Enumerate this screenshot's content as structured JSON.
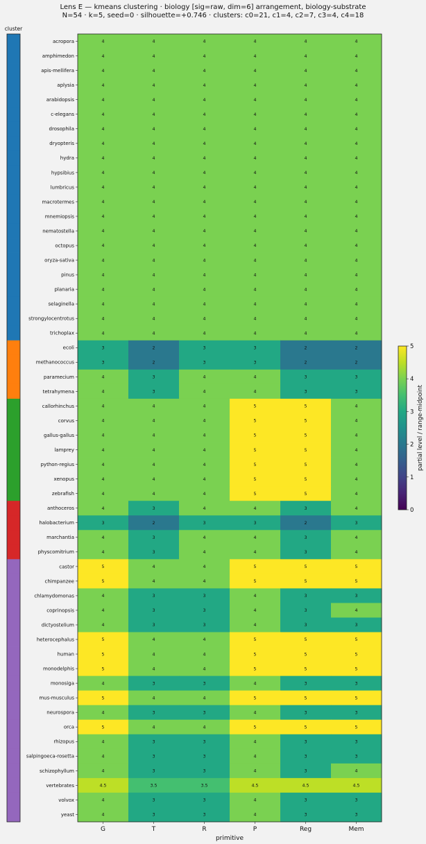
{
  "chart_data": {
    "type": "heatmap",
    "title": "Lens E — kmeans clustering · biology [sig=raw, dim=6] arrangement, biology-substrate",
    "subtitle": "N=54 · k=5, seed=0 · silhouette=+0.746 · clusters: c0=21, c1=4, c2=7, c3=4, c4=18",
    "xlabel": "primitive",
    "ylabel": "",
    "cluster_strip_label": "cluster",
    "colorbar_label": "partial level / range-midpoint",
    "colorbar_range": [
      0,
      5
    ],
    "colorbar_ticks": [
      "0",
      "1",
      "2",
      "3",
      "4",
      "5"
    ],
    "colormap": "viridis",
    "columns": [
      "G",
      "T",
      "R",
      "P",
      "Reg",
      "Mem"
    ],
    "cluster_colors": {
      "c0": "#1f77b4",
      "c1": "#ff7f0e",
      "c2": "#2ca02c",
      "c3": "#d62728",
      "c4": "#9467bd"
    },
    "rows": [
      {
        "name": "acropora",
        "cluster": "c0",
        "values": [
          4,
          4,
          4,
          4,
          4,
          4
        ],
        "labels": [
          "4",
          "4",
          "4",
          "4",
          "4",
          "4"
        ]
      },
      {
        "name": "amphimedon",
        "cluster": "c0",
        "values": [
          4,
          4,
          4,
          4,
          4,
          4
        ],
        "labels": [
          "4",
          "4",
          "4",
          "4",
          "4",
          "4"
        ]
      },
      {
        "name": "apis-mellifera",
        "cluster": "c0",
        "values": [
          4,
          4,
          4,
          4,
          4,
          4
        ],
        "labels": [
          "4",
          "4",
          "4",
          "4",
          "4",
          "4"
        ]
      },
      {
        "name": "aplysia",
        "cluster": "c0",
        "values": [
          4,
          4,
          4,
          4,
          4,
          4
        ],
        "labels": [
          "4",
          "4",
          "4",
          "4",
          "4",
          "4"
        ]
      },
      {
        "name": "arabidopsis",
        "cluster": "c0",
        "values": [
          4,
          4,
          4,
          4,
          4,
          4
        ],
        "labels": [
          "4",
          "4",
          "4",
          "4",
          "4",
          "4"
        ]
      },
      {
        "name": "c-elegans",
        "cluster": "c0",
        "values": [
          4,
          4,
          4,
          4,
          4,
          4
        ],
        "labels": [
          "4",
          "4",
          "4",
          "4",
          "4",
          "4"
        ]
      },
      {
        "name": "drosophila",
        "cluster": "c0",
        "values": [
          4,
          4,
          4,
          4,
          4,
          4
        ],
        "labels": [
          "4",
          "4",
          "4",
          "4",
          "4",
          "4"
        ]
      },
      {
        "name": "dryopteris",
        "cluster": "c0",
        "values": [
          4,
          4,
          4,
          4,
          4,
          4
        ],
        "labels": [
          "4",
          "4",
          "4",
          "4",
          "4",
          "4"
        ]
      },
      {
        "name": "hydra",
        "cluster": "c0",
        "values": [
          4,
          4,
          4,
          4,
          4,
          4
        ],
        "labels": [
          "4",
          "4",
          "4",
          "4",
          "4",
          "4"
        ]
      },
      {
        "name": "hypsibius",
        "cluster": "c0",
        "values": [
          4,
          4,
          4,
          4,
          4,
          4
        ],
        "labels": [
          "4",
          "4",
          "4",
          "4",
          "4",
          "4"
        ]
      },
      {
        "name": "lumbricus",
        "cluster": "c0",
        "values": [
          4,
          4,
          4,
          4,
          4,
          4
        ],
        "labels": [
          "4",
          "4",
          "4",
          "4",
          "4",
          "4"
        ]
      },
      {
        "name": "macrotermes",
        "cluster": "c0",
        "values": [
          4,
          4,
          4,
          4,
          4,
          4
        ],
        "labels": [
          "4",
          "4",
          "4",
          "4",
          "4",
          "4"
        ]
      },
      {
        "name": "mnemiopsis",
        "cluster": "c0",
        "values": [
          4,
          4,
          4,
          4,
          4,
          4
        ],
        "labels": [
          "4",
          "4",
          "4",
          "4",
          "4",
          "4"
        ]
      },
      {
        "name": "nematostella",
        "cluster": "c0",
        "values": [
          4,
          4,
          4,
          4,
          4,
          4
        ],
        "labels": [
          "4",
          "4",
          "4",
          "4",
          "4",
          "4"
        ]
      },
      {
        "name": "octopus",
        "cluster": "c0",
        "values": [
          4,
          4,
          4,
          4,
          4,
          4
        ],
        "labels": [
          "4",
          "4",
          "4",
          "4",
          "4",
          "4"
        ]
      },
      {
        "name": "oryza-sativa",
        "cluster": "c0",
        "values": [
          4,
          4,
          4,
          4,
          4,
          4
        ],
        "labels": [
          "4",
          "4",
          "4",
          "4",
          "4",
          "4"
        ]
      },
      {
        "name": "pinus",
        "cluster": "c0",
        "values": [
          4,
          4,
          4,
          4,
          4,
          4
        ],
        "labels": [
          "4",
          "4",
          "4",
          "4",
          "4",
          "4"
        ]
      },
      {
        "name": "planaria",
        "cluster": "c0",
        "values": [
          4,
          4,
          4,
          4,
          4,
          4
        ],
        "labels": [
          "4",
          "4",
          "4",
          "4",
          "4",
          "4"
        ]
      },
      {
        "name": "selaginella",
        "cluster": "c0",
        "values": [
          4,
          4,
          4,
          4,
          4,
          4
        ],
        "labels": [
          "4",
          "4",
          "4",
          "4",
          "4",
          "4"
        ]
      },
      {
        "name": "strongylocentrotus",
        "cluster": "c0",
        "values": [
          4,
          4,
          4,
          4,
          4,
          4
        ],
        "labels": [
          "4",
          "4",
          "4",
          "4",
          "4",
          "4"
        ]
      },
      {
        "name": "trichoplax",
        "cluster": "c0",
        "values": [
          4,
          4,
          4,
          4,
          4,
          4
        ],
        "labels": [
          "4",
          "4",
          "4",
          "4",
          "4",
          "4"
        ]
      },
      {
        "name": "ecoli",
        "cluster": "c1",
        "values": [
          3,
          2,
          3,
          3,
          2,
          2
        ],
        "labels": [
          "3",
          "2",
          "3",
          "3",
          "2",
          "2"
        ]
      },
      {
        "name": "methanococcus",
        "cluster": "c1",
        "values": [
          3,
          2,
          3,
          3,
          2,
          2
        ],
        "labels": [
          "3",
          "2",
          "3",
          "3",
          "2",
          "2"
        ]
      },
      {
        "name": "paramecium",
        "cluster": "c1",
        "values": [
          4,
          3,
          4,
          4,
          3,
          3
        ],
        "labels": [
          "4",
          "3",
          "4",
          "4",
          "3",
          "3"
        ]
      },
      {
        "name": "tetrahymena",
        "cluster": "c1",
        "values": [
          4,
          3,
          4,
          4,
          3,
          3
        ],
        "labels": [
          "4",
          "3",
          "4",
          "4",
          "3",
          "3"
        ]
      },
      {
        "name": "callorhinchus",
        "cluster": "c2",
        "values": [
          4,
          4,
          4,
          5,
          5,
          4
        ],
        "labels": [
          "4",
          "4",
          "4",
          "5",
          "5",
          "4"
        ]
      },
      {
        "name": "corvus",
        "cluster": "c2",
        "values": [
          4,
          4,
          4,
          5,
          5,
          4
        ],
        "labels": [
          "4",
          "4",
          "4",
          "5",
          "5",
          "4"
        ]
      },
      {
        "name": "gallus-gallus",
        "cluster": "c2",
        "values": [
          4,
          4,
          4,
          5,
          5,
          4
        ],
        "labels": [
          "4",
          "4",
          "4",
          "5",
          "5",
          "4"
        ]
      },
      {
        "name": "lamprey",
        "cluster": "c2",
        "values": [
          4,
          4,
          4,
          5,
          5,
          4
        ],
        "labels": [
          "4",
          "4",
          "4",
          "5",
          "5",
          "4"
        ]
      },
      {
        "name": "python-regius",
        "cluster": "c2",
        "values": [
          4,
          4,
          4,
          5,
          5,
          4
        ],
        "labels": [
          "4",
          "4",
          "4",
          "5",
          "5",
          "4"
        ]
      },
      {
        "name": "xenopus",
        "cluster": "c2",
        "values": [
          4,
          4,
          4,
          5,
          5,
          4
        ],
        "labels": [
          "4",
          "4",
          "4",
          "5",
          "5",
          "4"
        ]
      },
      {
        "name": "zebrafish",
        "cluster": "c2",
        "values": [
          4,
          4,
          4,
          5,
          5,
          4
        ],
        "labels": [
          "4",
          "4",
          "4",
          "5",
          "5",
          "4"
        ]
      },
      {
        "name": "anthoceros",
        "cluster": "c3",
        "values": [
          4,
          3,
          4,
          4,
          3,
          4
        ],
        "labels": [
          "4",
          "3",
          "4",
          "4",
          "3",
          "4"
        ]
      },
      {
        "name": "halobacterium",
        "cluster": "c3",
        "values": [
          3,
          2,
          3,
          3,
          2,
          3
        ],
        "labels": [
          "3",
          "2",
          "3",
          "3",
          "2",
          "3"
        ]
      },
      {
        "name": "marchantia",
        "cluster": "c3",
        "values": [
          4,
          3,
          4,
          4,
          3,
          4
        ],
        "labels": [
          "4",
          "3",
          "4",
          "4",
          "3",
          "4"
        ]
      },
      {
        "name": "physcomitrium",
        "cluster": "c3",
        "values": [
          4,
          3,
          4,
          4,
          3,
          4
        ],
        "labels": [
          "4",
          "3",
          "4",
          "4",
          "3",
          "4"
        ]
      },
      {
        "name": "castor",
        "cluster": "c4",
        "values": [
          5,
          4,
          4,
          5,
          5,
          5
        ],
        "labels": [
          "5",
          "4",
          "4",
          "5",
          "5",
          "5"
        ]
      },
      {
        "name": "chimpanzee",
        "cluster": "c4",
        "values": [
          5,
          4,
          4,
          5,
          5,
          5
        ],
        "labels": [
          "5",
          "4",
          "4",
          "5",
          "5",
          "5"
        ]
      },
      {
        "name": "chlamydomonas",
        "cluster": "c4",
        "values": [
          4,
          3,
          3,
          4,
          3,
          3
        ],
        "labels": [
          "4",
          "3",
          "3",
          "4",
          "3",
          "3"
        ]
      },
      {
        "name": "coprinopsis",
        "cluster": "c4",
        "values": [
          4,
          3,
          3,
          4,
          3,
          4
        ],
        "labels": [
          "4",
          "3",
          "3",
          "4",
          "3",
          "4"
        ]
      },
      {
        "name": "dictyostelium",
        "cluster": "c4",
        "values": [
          4,
          3,
          3,
          4,
          3,
          3
        ],
        "labels": [
          "4",
          "3",
          "3",
          "4",
          "3",
          "3"
        ]
      },
      {
        "name": "heterocephalus",
        "cluster": "c4",
        "values": [
          5,
          4,
          4,
          5,
          5,
          5
        ],
        "labels": [
          "5",
          "4",
          "4",
          "5",
          "5",
          "5"
        ]
      },
      {
        "name": "human",
        "cluster": "c4",
        "values": [
          5,
          4,
          4,
          5,
          5,
          5
        ],
        "labels": [
          "5",
          "4",
          "4",
          "5",
          "5",
          "5"
        ]
      },
      {
        "name": "monodelphis",
        "cluster": "c4",
        "values": [
          5,
          4,
          4,
          5,
          5,
          5
        ],
        "labels": [
          "5",
          "4",
          "4",
          "5",
          "5",
          "5"
        ]
      },
      {
        "name": "monosiga",
        "cluster": "c4",
        "values": [
          4,
          3,
          3,
          4,
          3,
          3
        ],
        "labels": [
          "4",
          "3",
          "3",
          "4",
          "3",
          "3"
        ]
      },
      {
        "name": "mus-musculus",
        "cluster": "c4",
        "values": [
          5,
          4,
          4,
          5,
          5,
          5
        ],
        "labels": [
          "5",
          "4",
          "4",
          "5",
          "5",
          "5"
        ]
      },
      {
        "name": "neurospora",
        "cluster": "c4",
        "values": [
          4,
          3,
          3,
          4,
          3,
          3
        ],
        "labels": [
          "4",
          "3",
          "3",
          "4",
          "3",
          "3"
        ]
      },
      {
        "name": "orca",
        "cluster": "c4",
        "values": [
          5,
          4,
          4,
          5,
          5,
          5
        ],
        "labels": [
          "5",
          "4",
          "4",
          "5",
          "5",
          "5"
        ]
      },
      {
        "name": "rhizopus",
        "cluster": "c4",
        "values": [
          4,
          3,
          3,
          4,
          3,
          3
        ],
        "labels": [
          "4",
          "3",
          "3",
          "4",
          "3",
          "3"
        ]
      },
      {
        "name": "salpingoeca-rosetta",
        "cluster": "c4",
        "values": [
          4,
          3,
          3,
          4,
          3,
          3
        ],
        "labels": [
          "4",
          "3",
          "3",
          "4",
          "3",
          "3"
        ]
      },
      {
        "name": "schizophyllum",
        "cluster": "c4",
        "values": [
          4,
          3,
          3,
          4,
          3,
          4
        ],
        "labels": [
          "4",
          "3",
          "3",
          "4",
          "3",
          "4"
        ]
      },
      {
        "name": "vertebrates",
        "cluster": "c4",
        "values": [
          4.5,
          3.5,
          3.5,
          4.5,
          4.5,
          4.5
        ],
        "labels": [
          "4.5",
          "3.5",
          "3.5",
          "4.5",
          "4.5",
          "4.5"
        ]
      },
      {
        "name": "volvox",
        "cluster": "c4",
        "values": [
          4,
          3,
          3,
          4,
          3,
          3
        ],
        "labels": [
          "4",
          "3",
          "3",
          "4",
          "3",
          "3"
        ]
      },
      {
        "name": "yeast",
        "cluster": "c4",
        "values": [
          4,
          3,
          3,
          4,
          3,
          3
        ],
        "labels": [
          "4",
          "3",
          "3",
          "4",
          "3",
          "3"
        ]
      }
    ]
  }
}
